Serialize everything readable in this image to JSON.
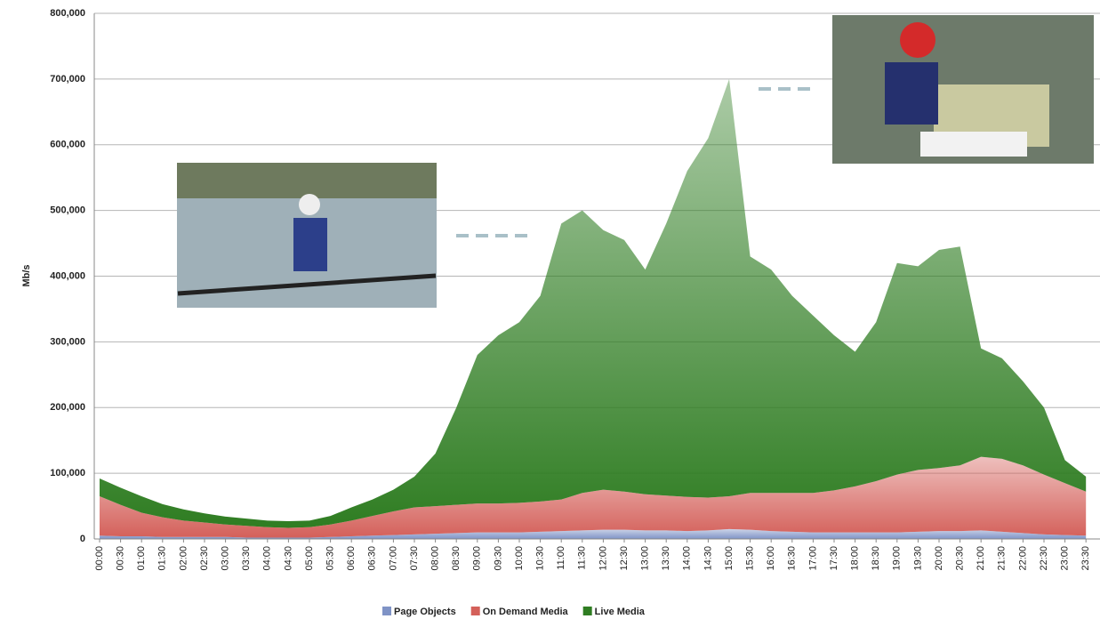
{
  "chart_data": {
    "type": "stacked-area",
    "y_label": "Mb/s",
    "categories": [
      "00:00",
      "00:30",
      "01:00",
      "01:30",
      "02:00",
      "02:30",
      "03:00",
      "03:30",
      "04:00",
      "04:30",
      "05:00",
      "05:30",
      "06:00",
      "06:30",
      "07:00",
      "07:30",
      "08:00",
      "08:30",
      "09:00",
      "09:30",
      "10:00",
      "10:30",
      "11:00",
      "11:30",
      "12:00",
      "12:30",
      "13:00",
      "13:30",
      "14:00",
      "14:30",
      "15:00",
      "15:30",
      "16:00",
      "16:30",
      "17:00",
      "17:30",
      "18:00",
      "18:30",
      "19:00",
      "19:30",
      "20:00",
      "20:30",
      "21:00",
      "21:30",
      "22:00",
      "22:30",
      "23:00",
      "23:30"
    ],
    "ylim": [
      0,
      800000
    ],
    "yticks": [
      0,
      {
        "value": 100000,
        "label": "100,000"
      },
      {
        "value": 200000,
        "label": "200,000"
      },
      {
        "value": 300000,
        "label": "300,000"
      },
      {
        "value": 400000,
        "label": "400,000"
      },
      {
        "value": 500000,
        "label": "500,000"
      },
      {
        "value": 600000,
        "label": "600,000"
      },
      {
        "value": 700000,
        "label": "700,000"
      },
      {
        "value": 800000,
        "label": "800,000"
      }
    ],
    "grid": true,
    "legend": "bottom",
    "series": [
      {
        "name": "Page Objects",
        "color": "#7f93c6",
        "values": [
          5000,
          4000,
          4000,
          3000,
          3000,
          3000,
          3000,
          2000,
          2000,
          2000,
          2000,
          3000,
          4000,
          5000,
          6000,
          7000,
          8000,
          9000,
          10000,
          10000,
          10000,
          11000,
          12000,
          13000,
          14000,
          14000,
          13000,
          13000,
          12000,
          13000,
          15000,
          14000,
          12000,
          11000,
          10000,
          10000,
          10000,
          10000,
          10000,
          11000,
          12000,
          12000,
          13000,
          11000,
          9000,
          7000,
          6000,
          5000
        ]
      },
      {
        "name": "On Demand Media",
        "color": "#d4605a",
        "values": [
          60000,
          48000,
          36000,
          30000,
          25000,
          22000,
          19000,
          18000,
          16000,
          15000,
          16000,
          19000,
          24000,
          30000,
          36000,
          41000,
          42000,
          43000,
          44000,
          44000,
          45000,
          46000,
          48000,
          57000,
          61000,
          58000,
          55000,
          53000,
          52000,
          50000,
          50000,
          56000,
          58000,
          59000,
          60000,
          64000,
          70000,
          78000,
          88000,
          94000,
          96000,
          100000,
          112000,
          111000,
          103000,
          91000,
          79000,
          67000
        ]
      },
      {
        "name": "Live Media",
        "color": "#2f7d22",
        "values": [
          27000,
          26000,
          25000,
          20000,
          17000,
          14000,
          12000,
          11000,
          10000,
          10000,
          10000,
          13000,
          20000,
          25000,
          33000,
          47000,
          80000,
          148000,
          226000,
          256000,
          275000,
          313000,
          420000,
          430000,
          395000,
          383000,
          342000,
          414000,
          496000,
          547000,
          635000,
          360000,
          340000,
          300000,
          270000,
          236000,
          205000,
          242000,
          322000,
          310000,
          332000,
          333000,
          165000,
          153000,
          128000,
          102000,
          35000,
          23000
        ]
      }
    ]
  }
}
